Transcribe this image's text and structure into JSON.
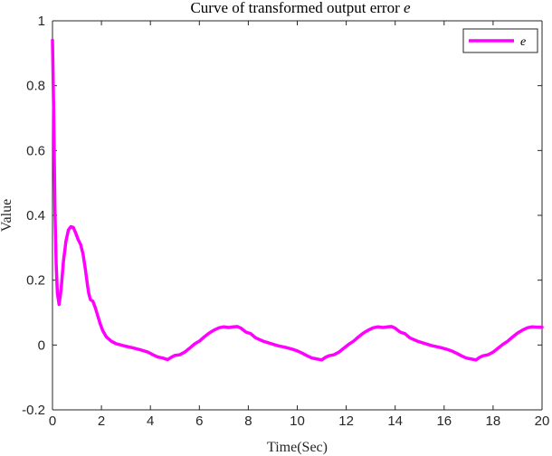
{
  "chart_data": {
    "type": "line",
    "title": {
      "text": "Curve of transformed output error ",
      "var": "e"
    },
    "xlabel": "Time(Sec)",
    "ylabel": "Value",
    "xlim": [
      0,
      20
    ],
    "ylim": [
      -0.2,
      1
    ],
    "xticks": [
      0,
      2,
      4,
      6,
      8,
      10,
      12,
      14,
      16,
      18,
      20
    ],
    "yticks": [
      -0.2,
      0,
      0.2,
      0.4,
      0.6,
      0.8,
      1
    ],
    "ytick_labels": [
      "-0.2",
      "0",
      "0.2",
      "0.4",
      "0.6",
      "0.8",
      "1"
    ],
    "grid": false,
    "legend": {
      "position": "top-right"
    },
    "series": [
      {
        "name": "e",
        "color": "#ff00ff",
        "points": [
          [
            0.0,
            0.94
          ],
          [
            0.05,
            0.72
          ],
          [
            0.1,
            0.42
          ],
          [
            0.15,
            0.25
          ],
          [
            0.2,
            0.16
          ],
          [
            0.27,
            0.125
          ],
          [
            0.35,
            0.17
          ],
          [
            0.45,
            0.26
          ],
          [
            0.55,
            0.32
          ],
          [
            0.65,
            0.355
          ],
          [
            0.75,
            0.365
          ],
          [
            0.85,
            0.363
          ],
          [
            0.95,
            0.345
          ],
          [
            1.05,
            0.325
          ],
          [
            1.15,
            0.31
          ],
          [
            1.25,
            0.28
          ],
          [
            1.35,
            0.23
          ],
          [
            1.42,
            0.19
          ],
          [
            1.48,
            0.16
          ],
          [
            1.55,
            0.14
          ],
          [
            1.65,
            0.135
          ],
          [
            1.75,
            0.115
          ],
          [
            1.85,
            0.09
          ],
          [
            1.95,
            0.065
          ],
          [
            2.05,
            0.045
          ],
          [
            2.2,
            0.025
          ],
          [
            2.4,
            0.012
          ],
          [
            2.6,
            0.004
          ],
          [
            2.8,
            0.0
          ],
          [
            3.0,
            -0.004
          ],
          [
            3.3,
            -0.009
          ],
          [
            3.6,
            -0.015
          ],
          [
            3.9,
            -0.022
          ],
          [
            4.1,
            -0.03
          ],
          [
            4.3,
            -0.037
          ],
          [
            4.5,
            -0.04
          ],
          [
            4.7,
            -0.045
          ],
          [
            4.85,
            -0.038
          ],
          [
            5.0,
            -0.032
          ],
          [
            5.2,
            -0.03
          ],
          [
            5.4,
            -0.022
          ],
          [
            5.6,
            -0.01
          ],
          [
            5.8,
            0.003
          ],
          [
            6.0,
            0.012
          ],
          [
            6.2,
            0.025
          ],
          [
            6.4,
            0.037
          ],
          [
            6.6,
            0.046
          ],
          [
            6.8,
            0.053
          ],
          [
            7.0,
            0.056
          ],
          [
            7.2,
            0.054
          ],
          [
            7.4,
            0.056
          ],
          [
            7.55,
            0.057
          ],
          [
            7.7,
            0.052
          ],
          [
            7.9,
            0.04
          ],
          [
            8.1,
            0.035
          ],
          [
            8.3,
            0.022
          ],
          [
            8.6,
            0.012
          ],
          [
            8.9,
            0.005
          ],
          [
            9.2,
            -0.002
          ],
          [
            9.5,
            -0.007
          ],
          [
            9.8,
            -0.013
          ],
          [
            10.0,
            -0.018
          ],
          [
            10.2,
            -0.025
          ],
          [
            10.4,
            -0.033
          ],
          [
            10.6,
            -0.04
          ],
          [
            10.8,
            -0.043
          ],
          [
            11.0,
            -0.046
          ],
          [
            11.15,
            -0.038
          ],
          [
            11.3,
            -0.033
          ],
          [
            11.5,
            -0.03
          ],
          [
            11.7,
            -0.022
          ],
          [
            11.9,
            -0.01
          ],
          [
            12.1,
            0.002
          ],
          [
            12.3,
            0.012
          ],
          [
            12.5,
            0.025
          ],
          [
            12.7,
            0.037
          ],
          [
            12.9,
            0.046
          ],
          [
            13.1,
            0.053
          ],
          [
            13.3,
            0.056
          ],
          [
            13.5,
            0.054
          ],
          [
            13.7,
            0.056
          ],
          [
            13.85,
            0.057
          ],
          [
            14.0,
            0.052
          ],
          [
            14.2,
            0.04
          ],
          [
            14.4,
            0.035
          ],
          [
            14.6,
            0.022
          ],
          [
            14.9,
            0.012
          ],
          [
            15.2,
            0.005
          ],
          [
            15.5,
            -0.002
          ],
          [
            15.8,
            -0.007
          ],
          [
            16.1,
            -0.013
          ],
          [
            16.3,
            -0.018
          ],
          [
            16.5,
            -0.025
          ],
          [
            16.7,
            -0.033
          ],
          [
            16.9,
            -0.04
          ],
          [
            17.1,
            -0.043
          ],
          [
            17.3,
            -0.046
          ],
          [
            17.45,
            -0.038
          ],
          [
            17.6,
            -0.033
          ],
          [
            17.8,
            -0.03
          ],
          [
            18.0,
            -0.022
          ],
          [
            18.2,
            -0.01
          ],
          [
            18.4,
            0.002
          ],
          [
            18.6,
            0.012
          ],
          [
            18.8,
            0.025
          ],
          [
            19.0,
            0.037
          ],
          [
            19.2,
            0.046
          ],
          [
            19.4,
            0.053
          ],
          [
            19.6,
            0.056
          ],
          [
            19.8,
            0.055
          ],
          [
            20.0,
            0.055
          ]
        ]
      }
    ]
  }
}
